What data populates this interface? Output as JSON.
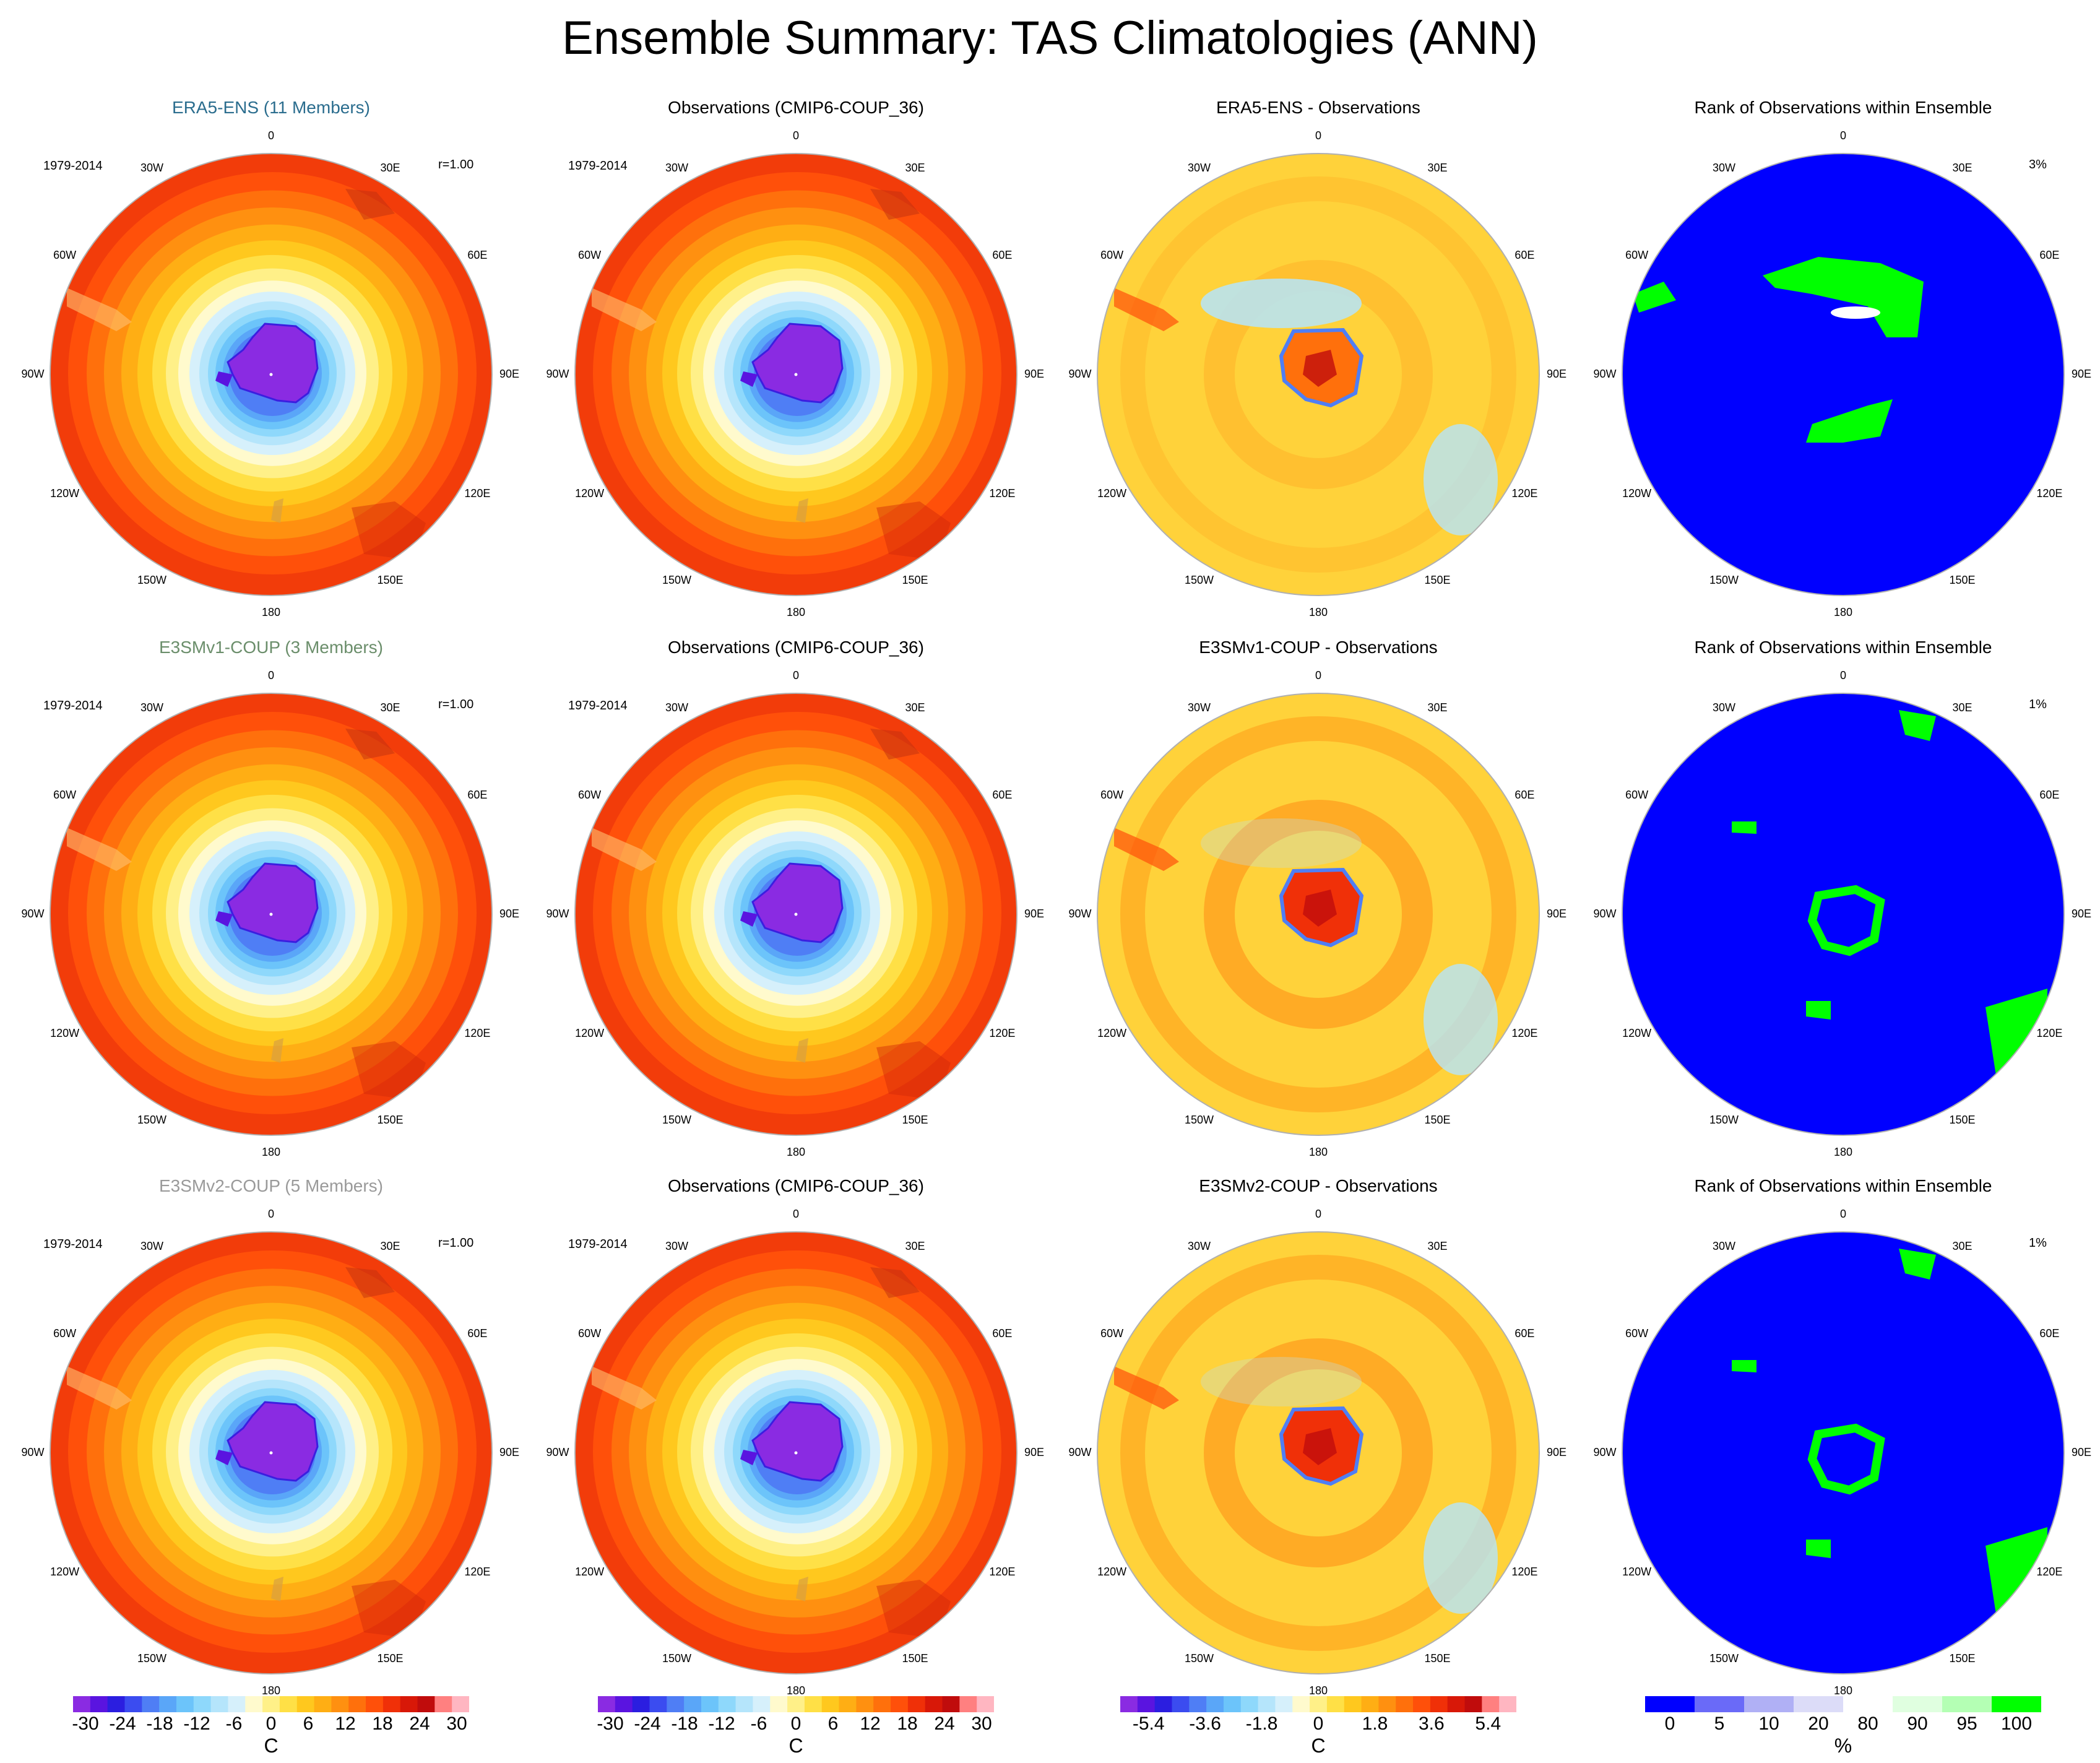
{
  "title": "Ensemble Summary: TAS Climatologies (ANN)",
  "rows": [
    {
      "model_title": "ERA5-ENS (11 Members)",
      "model_color": "#2b6d8e",
      "obs_title": "Observations (CMIP6-COUP_36)",
      "diff_title": "ERA5-ENS - Observations",
      "rank_title": "Rank of Observations within Ensemble",
      "period": "1979-2014",
      "corr": "r=1.00",
      "rank_pct": "3%"
    },
    {
      "model_title": "E3SMv1-COUP (3 Members)",
      "model_color": "#6b8e6b",
      "obs_title": "Observations (CMIP6-COUP_36)",
      "diff_title": "E3SMv1-COUP - Observations",
      "rank_title": "Rank of Observations within Ensemble",
      "period": "1979-2014",
      "corr": "r=1.00",
      "rank_pct": "1%"
    },
    {
      "model_title": "E3SMv2-COUP (5 Members)",
      "model_color": "#9a9a9a",
      "obs_title": "Observations (CMIP6-COUP_36)",
      "diff_title": "E3SMv2-COUP - Observations",
      "rank_title": "Rank of Observations within Ensemble",
      "period": "1979-2014",
      "corr": "r=1.00",
      "rank_pct": "1%"
    }
  ],
  "longitude_labels": [
    "0",
    "30E",
    "60E",
    "90E",
    "120E",
    "150E",
    "180",
    "150W",
    "120W",
    "90W",
    "60W",
    "30W"
  ],
  "colorbars": [
    {
      "ticks": [
        "-30",
        "-24",
        "-18",
        "-12",
        "-6",
        "0",
        "6",
        "12",
        "18",
        "24",
        "30"
      ],
      "unit": "C",
      "colors": [
        "#8a2be2",
        "#5a14e0",
        "#2b1ee0",
        "#3b4cf0",
        "#4f7ef5",
        "#5aa6f8",
        "#6cc4fa",
        "#8ed8fb",
        "#b5e5fb",
        "#d6f0fb",
        "#fffacd",
        "#fff088",
        "#ffe046",
        "#ffc81e",
        "#ffae14",
        "#ff9010",
        "#ff700c",
        "#ff500a",
        "#f03008",
        "#d81808",
        "#c00c0c",
        "#ff8080",
        "#ffb6c1"
      ]
    },
    {
      "ticks": [
        "-30",
        "-24",
        "-18",
        "-12",
        "-6",
        "0",
        "6",
        "12",
        "18",
        "24",
        "30"
      ],
      "unit": "C",
      "colors": [
        "#8a2be2",
        "#5a14e0",
        "#2b1ee0",
        "#3b4cf0",
        "#4f7ef5",
        "#5aa6f8",
        "#6cc4fa",
        "#8ed8fb",
        "#b5e5fb",
        "#d6f0fb",
        "#fffacd",
        "#fff088",
        "#ffe046",
        "#ffc81e",
        "#ffae14",
        "#ff9010",
        "#ff700c",
        "#ff500a",
        "#f03008",
        "#d81808",
        "#c00c0c",
        "#ff8080",
        "#ffb6c1"
      ]
    },
    {
      "ticks": [
        "-5.4",
        "-3.6",
        "-1.8",
        "0",
        "1.8",
        "3.6",
        "5.4"
      ],
      "unit": "C",
      "colors": [
        "#8a2be2",
        "#5a14e0",
        "#2b1ee0",
        "#3b4cf0",
        "#4f7ef5",
        "#5aa6f8",
        "#6cc4fa",
        "#8ed8fb",
        "#b5e5fb",
        "#d6f0fb",
        "#fffacd",
        "#fff088",
        "#ffe046",
        "#ffc81e",
        "#ffae14",
        "#ff9010",
        "#ff700c",
        "#ff500a",
        "#f03008",
        "#d81808",
        "#c00c0c",
        "#ff8080",
        "#ffb6c1"
      ]
    },
    {
      "ticks": [
        "0",
        "5",
        "10",
        "20",
        "80",
        "90",
        "95",
        "100"
      ],
      "unit": "%",
      "colors": [
        "#0000ff",
        "#6a6af8",
        "#b0b0f5",
        "#dcdcf8",
        "#ffffff",
        "#e0ffe0",
        "#b4ffb4",
        "#00ff00"
      ]
    }
  ],
  "chart_data": [
    {
      "type": "heatmap",
      "row": 1,
      "panel": "model",
      "title": "ERA5-ENS (11 Members)",
      "period": "1979-2014",
      "correlation": 1.0,
      "units": "C",
      "crange": [
        -30,
        30
      ],
      "projection": "south polar stereographic"
    },
    {
      "type": "heatmap",
      "row": 1,
      "panel": "observations",
      "title": "Observations (CMIP6-COUP_36)",
      "period": "1979-2014",
      "units": "C",
      "crange": [
        -30,
        30
      ]
    },
    {
      "type": "heatmap",
      "row": 1,
      "panel": "difference",
      "title": "ERA5-ENS - Observations",
      "units": "C",
      "crange": [
        -5.4,
        5.4
      ]
    },
    {
      "type": "heatmap",
      "row": 1,
      "panel": "rank",
      "title": "Rank of Observations within Ensemble",
      "units": "%",
      "annotation": "3%"
    },
    {
      "type": "heatmap",
      "row": 2,
      "panel": "model",
      "title": "E3SMv1-COUP (3 Members)",
      "period": "1979-2014",
      "correlation": 1.0,
      "units": "C",
      "crange": [
        -30,
        30
      ]
    },
    {
      "type": "heatmap",
      "row": 2,
      "panel": "observations",
      "title": "Observations (CMIP6-COUP_36)",
      "period": "1979-2014",
      "units": "C",
      "crange": [
        -30,
        30
      ]
    },
    {
      "type": "heatmap",
      "row": 2,
      "panel": "difference",
      "title": "E3SMv1-COUP - Observations",
      "units": "C",
      "crange": [
        -5.4,
        5.4
      ]
    },
    {
      "type": "heatmap",
      "row": 2,
      "panel": "rank",
      "title": "Rank of Observations within Ensemble",
      "units": "%",
      "annotation": "1%"
    },
    {
      "type": "heatmap",
      "row": 3,
      "panel": "model",
      "title": "E3SMv2-COUP (5 Members)",
      "period": "1979-2014",
      "correlation": 1.0,
      "units": "C",
      "crange": [
        -30,
        30
      ]
    },
    {
      "type": "heatmap",
      "row": 3,
      "panel": "observations",
      "title": "Observations (CMIP6-COUP_36)",
      "period": "1979-2014",
      "units": "C",
      "crange": [
        -30,
        30
      ]
    },
    {
      "type": "heatmap",
      "row": 3,
      "panel": "difference",
      "title": "E3SMv2-COUP - Observations",
      "units": "C",
      "crange": [
        -5.4,
        5.4
      ]
    },
    {
      "type": "heatmap",
      "row": 3,
      "panel": "rank",
      "title": "Rank of Observations within Ensemble",
      "units": "%",
      "annotation": "1%"
    }
  ]
}
